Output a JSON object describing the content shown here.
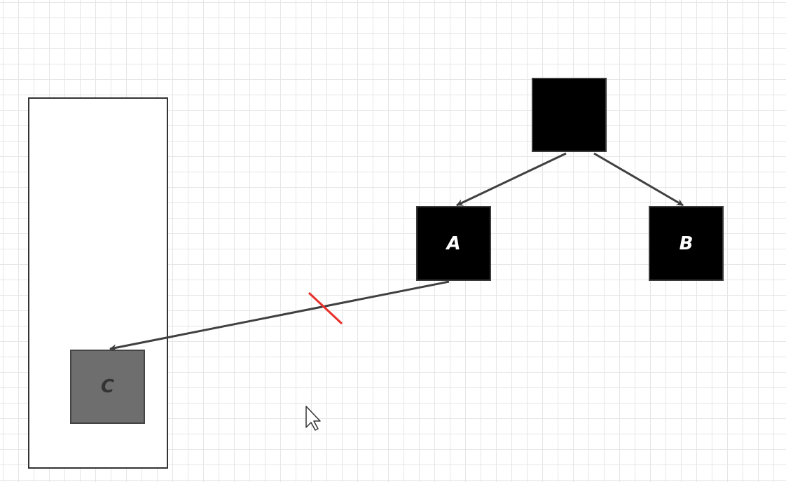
{
  "nodes": {
    "root": {
      "label": ""
    },
    "a": {
      "label": "A"
    },
    "b": {
      "label": "B"
    },
    "c": {
      "label": "C"
    }
  },
  "edges": [
    {
      "from": "root",
      "to": "a"
    },
    {
      "from": "root",
      "to": "b"
    },
    {
      "from": "a",
      "to": "c",
      "severed": true
    }
  ],
  "colors": {
    "edge": "#404040",
    "severed_mark": "#e8302a",
    "node_dark": "#000000",
    "node_grey": "#6e6e6e",
    "grid": "#e6e6e6"
  },
  "icons": {
    "cursor": "mouse-pointer-icon"
  }
}
